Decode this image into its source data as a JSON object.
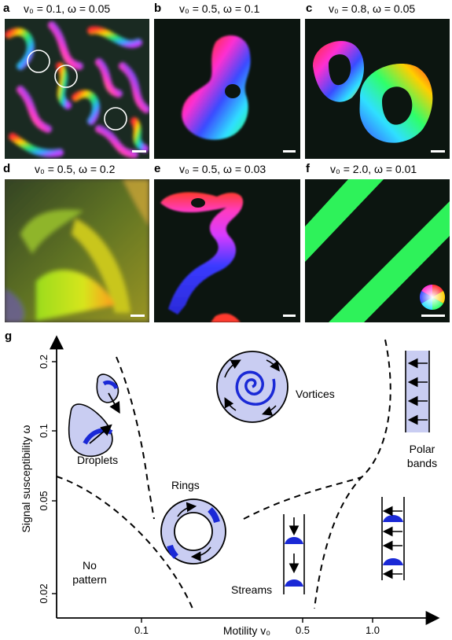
{
  "panels": [
    {
      "letter": "a",
      "title": "v₀ = 0.1, ω = 0.05"
    },
    {
      "letter": "b",
      "title": "v₀ = 0.5, ω = 0.1"
    },
    {
      "letter": "c",
      "title": "v₀ = 0.8, ω = 0.05"
    },
    {
      "letter": "d",
      "title": "v₀ = 0.5, ω = 0.2"
    },
    {
      "letter": "e",
      "title": "v₀ = 0.5, ω = 0.03"
    },
    {
      "letter": "f",
      "title": "v₀ = 2.0, ω = 0.01"
    }
  ],
  "phase": {
    "letter": "g",
    "ylabel": "Signal susceptibility ω",
    "xlabel": "Motility v₀",
    "yticks": [
      "0.2",
      "0.1",
      "0.05",
      "0.02"
    ],
    "xticks": [
      "0.1",
      "0.5",
      "1.0"
    ],
    "regions": {
      "droplets": "Droplets",
      "rings": "Rings",
      "vortices": "Vortices",
      "polar_bands_1": "Polar",
      "polar_bands_2": "bands",
      "no_pattern_1": "No",
      "no_pattern_2": "pattern",
      "streams": "Streams"
    }
  }
}
